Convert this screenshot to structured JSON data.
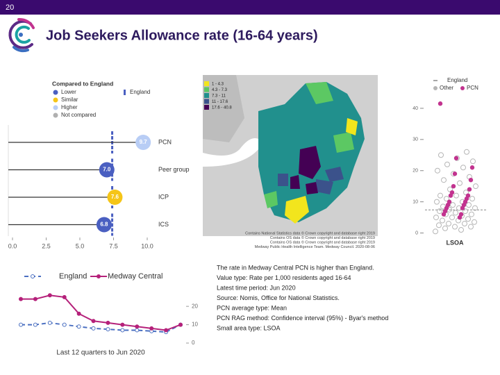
{
  "slide_number": "20",
  "title": "Job Seekers Allowance rate (16-64 years)",
  "notes": [
    "The rate in Medway Central PCN is higher than England.",
    "Value type: Rate per 1,000 residents aged 16-64",
    "Latest time period: Jun 2020",
    "Source: Nomis, Office for National Statistics.",
    "PCN average type: Mean",
    "PCN RAG method: Confidence interval (95%) - Byar's method",
    "Small area type: LSOA"
  ],
  "chart_data": [
    {
      "type": "dot",
      "legend_title": "Compared to England",
      "legend": [
        {
          "name": "Lower",
          "color": "#4a5fc1"
        },
        {
          "name": "Similar",
          "color": "#f5c518"
        },
        {
          "name": "Higher",
          "color": "#b8cdf5"
        },
        {
          "name": "Not compared",
          "color": "#b0b0b0"
        }
      ],
      "reference": {
        "name": "England",
        "value": 7.4,
        "color": "#4a5fc1"
      },
      "categories": [
        "PCN",
        "Peer group",
        "ICP",
        "ICS"
      ],
      "values": [
        9.7,
        7.0,
        7.6,
        6.8
      ],
      "value_labels": [
        "9.7",
        "7.0",
        "7.6",
        "6.8"
      ],
      "point_colors": [
        "#b8cdf5",
        "#4a5fc1",
        "#f5c518",
        "#4a5fc1"
      ],
      "xlim": [
        0,
        10
      ],
      "xticks": [
        {
          "value": 0,
          "label": "0.0"
        },
        2.5,
        {
          "value": 5,
          "label": "5.0"
        },
        7.5,
        {
          "value": 10,
          "label": "10.0"
        }
      ]
    },
    {
      "type": "map",
      "legend": [
        {
          "label": "1 - 4.3",
          "color": "#f2e51d"
        },
        {
          "label": "4.3 - 7.3",
          "color": "#5cc863"
        },
        {
          "label": "7.3 - 11",
          "color": "#21908d"
        },
        {
          "label": "11 - 17.6",
          "color": "#3b528b"
        },
        {
          "label": "17.6 - 40.8",
          "color": "#440154"
        }
      ],
      "credits": [
        "Contains National Statistics data © Crown copyright and database right 2019",
        "Contains OS data © Crown copyright and database right 2019",
        "Contains OS data © Crown copyright and database right 2019",
        "Medway Public Health Intelligence Team. Medway Council. 2020-08-06"
      ]
    },
    {
      "type": "strip",
      "xlabel": "LSOA",
      "reference": {
        "name": "England",
        "value": 7.4,
        "color": "#888888"
      },
      "series": [
        {
          "name": "Other",
          "color": "#b5b5b5",
          "values": [
            0.5,
            1,
            1.5,
            2,
            2,
            2.5,
            3,
            3,
            3.5,
            4,
            4,
            4.5,
            5,
            5,
            5.5,
            6,
            6,
            6.5,
            7,
            7,
            7.5,
            8,
            8,
            8.5,
            9,
            9,
            10,
            10,
            11,
            11,
            12,
            12,
            13,
            14,
            15,
            16,
            17,
            18,
            19,
            20,
            21,
            22,
            23,
            24,
            25,
            26
          ]
        },
        {
          "name": "PCN",
          "color": "#c2338f",
          "values": [
            41.5,
            24,
            21,
            19,
            17,
            15,
            14,
            13,
            12,
            12,
            11,
            10,
            10,
            9,
            9,
            8,
            8,
            7,
            6,
            6,
            5
          ]
        }
      ],
      "ylim": [
        -1,
        44
      ],
      "yticks": [
        0,
        10,
        20,
        30,
        40
      ]
    },
    {
      "type": "line",
      "xlabel": "Last 12 quarters to Jun 2020",
      "categories": [
        null,
        null,
        null,
        null,
        null,
        null,
        null,
        null,
        null,
        null,
        null,
        null
      ],
      "series": [
        {
          "name": "England",
          "color": "#4a6fc1",
          "values": [
            10,
            10,
            11,
            10,
            9,
            8,
            7.5,
            7,
            7,
            6.5,
            6,
            10
          ]
        },
        {
          "name": "Medway Central",
          "color": "#b5217a",
          "values": [
            24,
            24,
            26,
            25,
            16,
            12,
            11,
            10,
            9,
            8,
            7,
            10
          ]
        }
      ],
      "ylim": [
        0,
        28
      ],
      "yticks": [
        0,
        10,
        20
      ]
    }
  ]
}
